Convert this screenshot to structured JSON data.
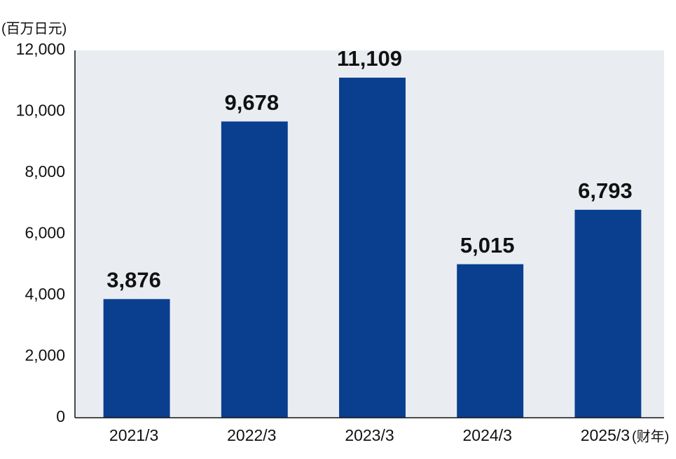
{
  "chart_data": {
    "type": "bar",
    "y_unit_label": "(百万日元)",
    "x_unit_label": "(财年)",
    "categories": [
      "2021/3",
      "2022/3",
      "2023/3",
      "2024/3",
      "2025/3"
    ],
    "values": [
      3876,
      9678,
      11109,
      5015,
      6793
    ],
    "value_labels": [
      "3,876",
      "9,678",
      "11,109",
      "5,015",
      "6,793"
    ],
    "color": "#0a3f8f",
    "ylim": [
      0,
      12000
    ],
    "yticks": [
      0,
      {
        "value": 2000,
        "label": "2,000"
      },
      {
        "value": 4000,
        "label": "4,000"
      },
      {
        "value": 6000,
        "label": "6,000"
      },
      {
        "value": 8000,
        "label": "8,000"
      },
      {
        "value": 10000,
        "label": "10,000"
      },
      {
        "value": 12000,
        "label": "12,000"
      }
    ]
  }
}
